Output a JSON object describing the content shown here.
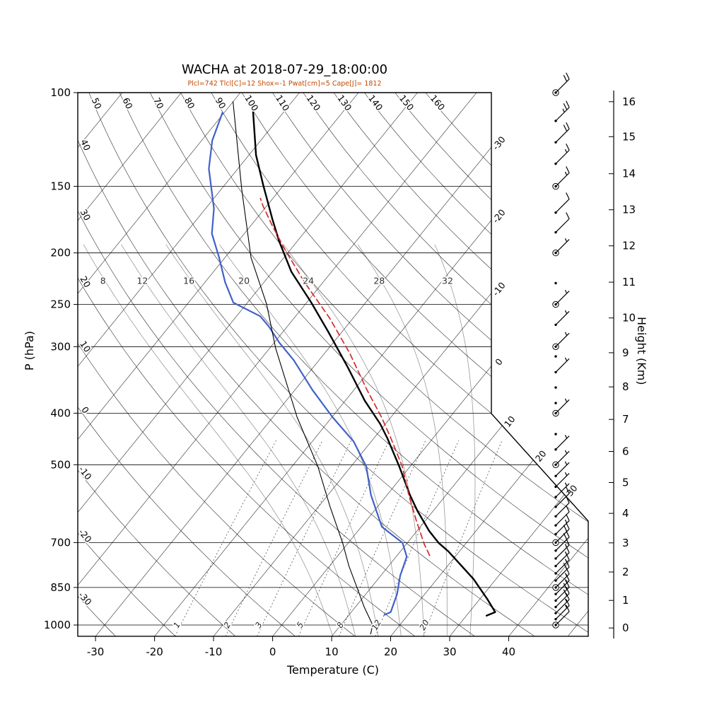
{
  "title": "WACHA at 2018-07-29_18:00:00",
  "subtitle": "Plcl=742 Tlcl[C]=12 Shox=-1 Pwat[cm]=5 Cape[J]= 1812",
  "colors": {
    "subtitle": "#c04a00",
    "temperature": "#000000",
    "dewpoint": "#4060c8",
    "parcel": "#d42a2a",
    "reference": "#000000"
  },
  "axes": {
    "pressure": {
      "label": "P (hPa)",
      "ticks": [
        100,
        150,
        200,
        250,
        300,
        400,
        500,
        700,
        850,
        1000
      ]
    },
    "temperature": {
      "label": "Temperature (C)",
      "ticks": [
        -30,
        -20,
        -10,
        0,
        10,
        20,
        30,
        40
      ]
    },
    "height": {
      "label": "Height (Km)",
      "ticks": [
        0,
        1,
        2,
        3,
        4,
        5,
        6,
        7,
        8,
        9,
        10,
        11,
        12,
        13,
        14,
        15,
        16
      ]
    }
  },
  "chart_data": {
    "type": "line",
    "variant": "skew-t-log-p",
    "station": "WACHA",
    "datetime": "2018-07-29_18:00:00",
    "indices": {
      "Plcl": 742,
      "Tlcl_C": 12,
      "Shox": -1,
      "Pwat_cm": 5,
      "Cape_J": 1812
    },
    "pressure_range_hPa": [
      100,
      1050
    ],
    "temp_axis_range_C": [
      -33,
      53.5
    ],
    "background": {
      "isotherms_C": [
        -110,
        -100,
        -90,
        -80,
        -70,
        -60,
        -50,
        -40,
        -30,
        -20,
        -10,
        0,
        10,
        20,
        30,
        40,
        50
      ],
      "isotherm_labels_C": [
        -30,
        -20,
        -10,
        0,
        10,
        20,
        30
      ],
      "dry_adiabats_C": [
        -30,
        -20,
        -10,
        0,
        10,
        20,
        30,
        40,
        50,
        60,
        70,
        80,
        90,
        100,
        110,
        120,
        130,
        140,
        150,
        160
      ],
      "moist_adiabats_C": [
        8,
        12,
        16,
        20,
        24,
        28,
        32
      ],
      "mixing_ratio_g_kg": [
        1,
        2,
        3,
        5,
        8,
        12,
        20
      ]
    },
    "series": [
      {
        "name": "temperature",
        "color": "#000000",
        "width": 2.4,
        "dash": null,
        "points_p_T": [
          [
            960,
            33.4
          ],
          [
            946,
            34.4
          ],
          [
            896,
            31.4
          ],
          [
            820,
            26.2
          ],
          [
            768,
            21.8
          ],
          [
            727,
            18.1
          ],
          [
            701,
            15.3
          ],
          [
            666,
            12.1
          ],
          [
            610,
            7.3
          ],
          [
            570,
            3.9
          ],
          [
            504,
            -1.8
          ],
          [
            446,
            -7.7
          ],
          [
            419,
            -10.9
          ],
          [
            379,
            -16.7
          ],
          [
            329,
            -24.0
          ],
          [
            282,
            -32.2
          ],
          [
            248,
            -39.2
          ],
          [
            217,
            -46.8
          ],
          [
            190,
            -53.1
          ],
          [
            173,
            -57.2
          ],
          [
            149,
            -63.5
          ],
          [
            131,
            -68.8
          ],
          [
            105,
            -76.4
          ]
        ]
      },
      {
        "name": "dewpoint",
        "color": "#4060c8",
        "width": 2.2,
        "dash": null,
        "points_p_T": [
          [
            957,
            16.0
          ],
          [
            946,
            16.7
          ],
          [
            875,
            15.3
          ],
          [
            808,
            13.3
          ],
          [
            744,
            11.8
          ],
          [
            701,
            9.2
          ],
          [
            654,
            3.5
          ],
          [
            570,
            -2.7
          ],
          [
            504,
            -7.4
          ],
          [
            452,
            -13.0
          ],
          [
            407,
            -19.9
          ],
          [
            362,
            -27.0
          ],
          [
            318,
            -34.3
          ],
          [
            295,
            -39.1
          ],
          [
            275,
            -43.1
          ],
          [
            263,
            -46.0
          ],
          [
            248,
            -52.4
          ],
          [
            227,
            -56.6
          ],
          [
            204,
            -61.0
          ],
          [
            184,
            -65.5
          ],
          [
            165,
            -68.6
          ],
          [
            139,
            -74.9
          ],
          [
            123,
            -78.2
          ],
          [
            109,
            -80.3
          ]
        ]
      },
      {
        "name": "parcel",
        "color": "#d42a2a",
        "width": 1.7,
        "dash": "8 5",
        "points_p_T": [
          [
            740,
            15.5
          ],
          [
            704,
            13.0
          ],
          [
            634,
            8.3
          ],
          [
            570,
            3.7
          ],
          [
            504,
            -1.3
          ],
          [
            446,
            -7.1
          ],
          [
            407,
            -11.6
          ],
          [
            361,
            -17.9
          ],
          [
            309,
            -25.7
          ],
          [
            265,
            -34.0
          ],
          [
            228,
            -42.9
          ],
          [
            198,
            -50.7
          ],
          [
            178,
            -56.3
          ],
          [
            163,
            -60.7
          ],
          [
            158,
            -62.1
          ]
        ]
      },
      {
        "name": "reference",
        "color": "#000000",
        "width": 1.1,
        "dash": null,
        "points_p_T": [
          [
            1040,
            16.3
          ],
          [
            1000,
            15.4
          ],
          [
            925,
            11.5
          ],
          [
            850,
            7.6
          ],
          [
            775,
            3.3
          ],
          [
            700,
            -1.0
          ],
          [
            600,
            -8.0
          ],
          [
            504,
            -15.6
          ],
          [
            407,
            -25.9
          ],
          [
            302,
            -39.0
          ],
          [
            250,
            -46.5
          ],
          [
            204,
            -55.6
          ],
          [
            152,
            -66.5
          ],
          [
            104,
            -80.0
          ]
        ]
      }
    ],
    "wind_profile": {
      "barb_levels_p_kt": [
        [
          1000,
          10
        ],
        [
          975,
          15
        ],
        [
          950,
          15
        ],
        [
          925,
          20
        ],
        [
          900,
          20
        ],
        [
          875,
          15
        ],
        [
          850,
          15
        ],
        [
          825,
          20
        ],
        [
          800,
          15
        ],
        [
          775,
          15
        ],
        [
          750,
          15
        ],
        [
          725,
          20
        ],
        [
          700,
          20
        ],
        [
          675,
          15
        ],
        [
          650,
          10
        ],
        [
          625,
          10
        ],
        [
          600,
          10
        ],
        [
          575,
          5
        ],
        [
          550,
          5
        ],
        [
          525,
          5
        ],
        [
          500,
          5
        ],
        [
          468,
          5
        ],
        [
          438,
          0
        ],
        [
          400,
          5
        ],
        [
          383,
          0
        ],
        [
          358,
          0
        ],
        [
          335,
          5
        ],
        [
          313,
          0
        ],
        [
          300,
          5
        ],
        [
          273,
          5
        ],
        [
          250,
          5
        ],
        [
          228,
          0
        ],
        [
          200,
          5
        ],
        [
          183,
          10
        ],
        [
          168,
          10
        ],
        [
          150,
          15
        ],
        [
          136,
          15
        ],
        [
          124,
          20
        ],
        [
          113,
          25
        ],
        [
          100,
          20
        ]
      ],
      "mandatory_circle_levels_p": [
        1000,
        850,
        700,
        500,
        400,
        300,
        250,
        200,
        150,
        100
      ]
    },
    "height_km_to_hPa": [
      1013,
      899,
      795,
      701,
      617,
      540,
      472,
      411,
      357,
      308,
      265,
      227,
      194,
      166,
      142,
      121,
      104
    ]
  }
}
